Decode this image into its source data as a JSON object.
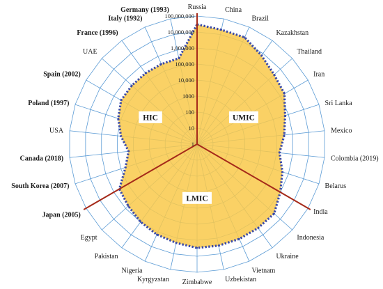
{
  "chart_data": {
    "type": "radar",
    "scale": "log10",
    "rlim": [
      1,
      100000000
    ],
    "ticks": [
      {
        "value": 1,
        "label": "1"
      },
      {
        "value": 10,
        "label": "10"
      },
      {
        "value": 100,
        "label": "100"
      },
      {
        "value": 1000,
        "label": "1000"
      },
      {
        "value": 10000,
        "label": "10,000"
      },
      {
        "value": 100000,
        "label": "100,000"
      },
      {
        "value": 1000000,
        "label": "1,000,000"
      },
      {
        "value": 10000000,
        "label": "10,000,000"
      },
      {
        "value": 100000000,
        "label": "100,000,000"
      }
    ],
    "categories": [
      {
        "label": "Russia",
        "bold": false
      },
      {
        "label": "China",
        "bold": false
      },
      {
        "label": "Brazil",
        "bold": false
      },
      {
        "label": "Kazakhstan",
        "bold": false
      },
      {
        "label": "Thailand",
        "bold": false
      },
      {
        "label": "Iran",
        "bold": false
      },
      {
        "label": "Sri Lanka",
        "bold": false
      },
      {
        "label": "Mexico",
        "bold": false
      },
      {
        "label": "Colombia  (2019)",
        "bold": false
      },
      {
        "label": "Belarus",
        "bold": false
      },
      {
        "label": "India",
        "bold": false
      },
      {
        "label": "Indonesia",
        "bold": false
      },
      {
        "label": "Ukraine",
        "bold": false
      },
      {
        "label": "Vietnam",
        "bold": false
      },
      {
        "label": "Uzbekistan",
        "bold": false
      },
      {
        "label": "Zimbabwe",
        "bold": false
      },
      {
        "label": "Kyrgyzstan",
        "bold": false
      },
      {
        "label": "Nigeria",
        "bold": false
      },
      {
        "label": "Pakistan",
        "bold": false
      },
      {
        "label": "Egypt",
        "bold": false
      },
      {
        "label": "Japan (2005)",
        "bold": true
      },
      {
        "label": "South Korea (2007)",
        "bold": true
      },
      {
        "label": "Canada (2018)",
        "bold": true
      },
      {
        "label": "USA",
        "bold": false
      },
      {
        "label": "Poland (1997)",
        "bold": true
      },
      {
        "label": "Spain  (2002)",
        "bold": true
      },
      {
        "label": "UAE",
        "bold": false
      },
      {
        "label": "France (1996)",
        "bold": true
      },
      {
        "label": "Italy (1992)",
        "bold": true
      },
      {
        "label": "Germany (1993)",
        "bold": true
      }
    ],
    "values": [
      30000000,
      20000000,
      20000000,
      7000000,
      3000000,
      2000000,
      600000,
      300000,
      150000,
      400000,
      1000000,
      3000000,
      3000000,
      3000000,
      3000000,
      3000000,
      2000000,
      1500000,
      1000000,
      600000,
      400000,
      50000,
      20000,
      60000,
      150000,
      300000,
      300000,
      300000,
      300000,
      300000
    ],
    "groups": [
      {
        "label": "HIC",
        "angle_deg": 300,
        "radius_frac": 0.42
      },
      {
        "label": "UMIC",
        "angle_deg": 60,
        "radius_frac": 0.42
      },
      {
        "label": "LMIC",
        "angle_deg": 180,
        "radius_frac": 0.42
      }
    ],
    "dividers_deg": [
      0,
      120,
      240
    ],
    "colors": {
      "fill": "#f9c94a",
      "outline": "#3b4aa7",
      "grid": "#5b9bd5",
      "divider": "#a52a1a"
    },
    "grid": true
  }
}
